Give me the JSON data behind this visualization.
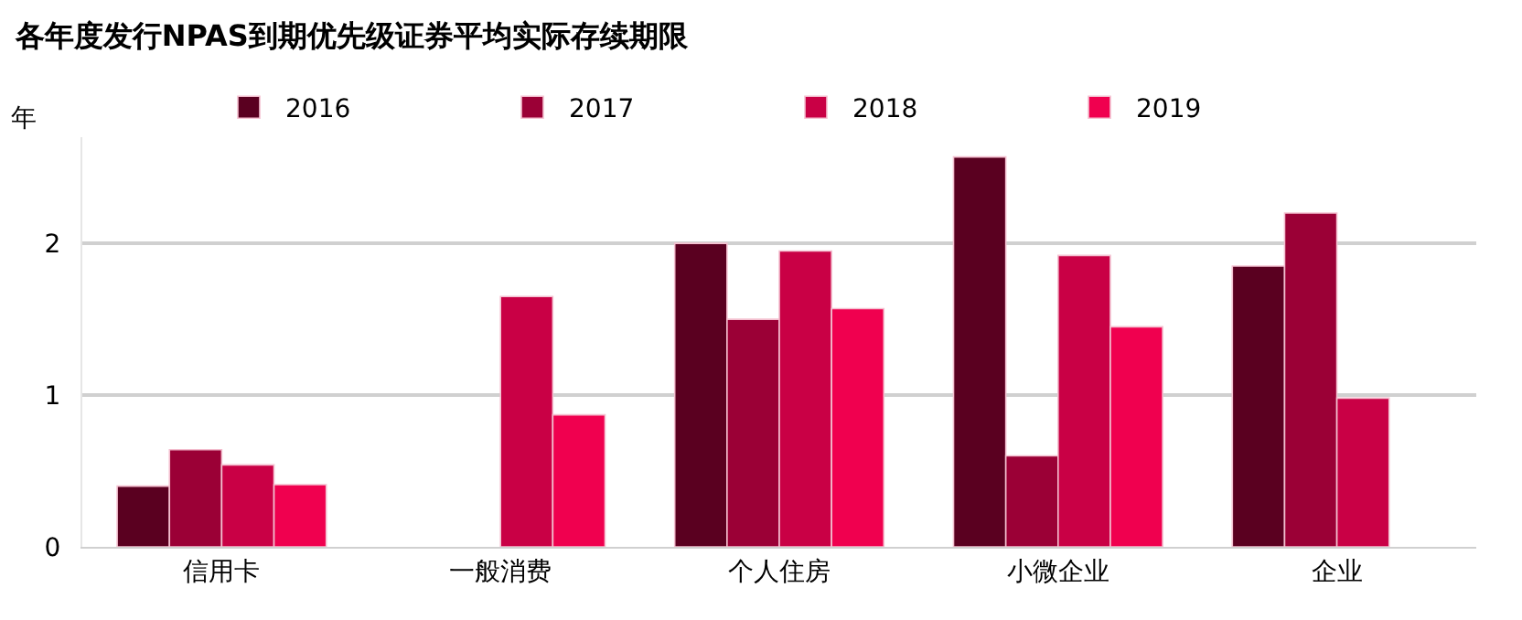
{
  "chart_data": {
    "type": "bar",
    "title": "各年度发行NPAS到期优先级证券平均实际存续期限",
    "ylabel": "年",
    "categories": [
      "信用卡",
      "一般消费",
      "个人住房",
      "小微企业",
      "企业"
    ],
    "series": [
      {
        "name": "2016",
        "color": "#5a0020",
        "values": [
          0.4,
          null,
          2.0,
          2.57,
          1.85
        ]
      },
      {
        "name": "2017",
        "color": "#9b0036",
        "values": [
          0.64,
          null,
          1.5,
          0.6,
          2.2
        ]
      },
      {
        "name": "2018",
        "color": "#c90045",
        "values": [
          0.54,
          1.65,
          1.95,
          1.92,
          0.98
        ]
      },
      {
        "name": "2019",
        "color": "#f0004f",
        "values": [
          0.41,
          0.87,
          1.57,
          1.45,
          null
        ]
      }
    ],
    "ylim": [
      0,
      2.7
    ],
    "yticks": [
      0,
      1,
      2
    ],
    "grid": "y",
    "legend": "top"
  }
}
